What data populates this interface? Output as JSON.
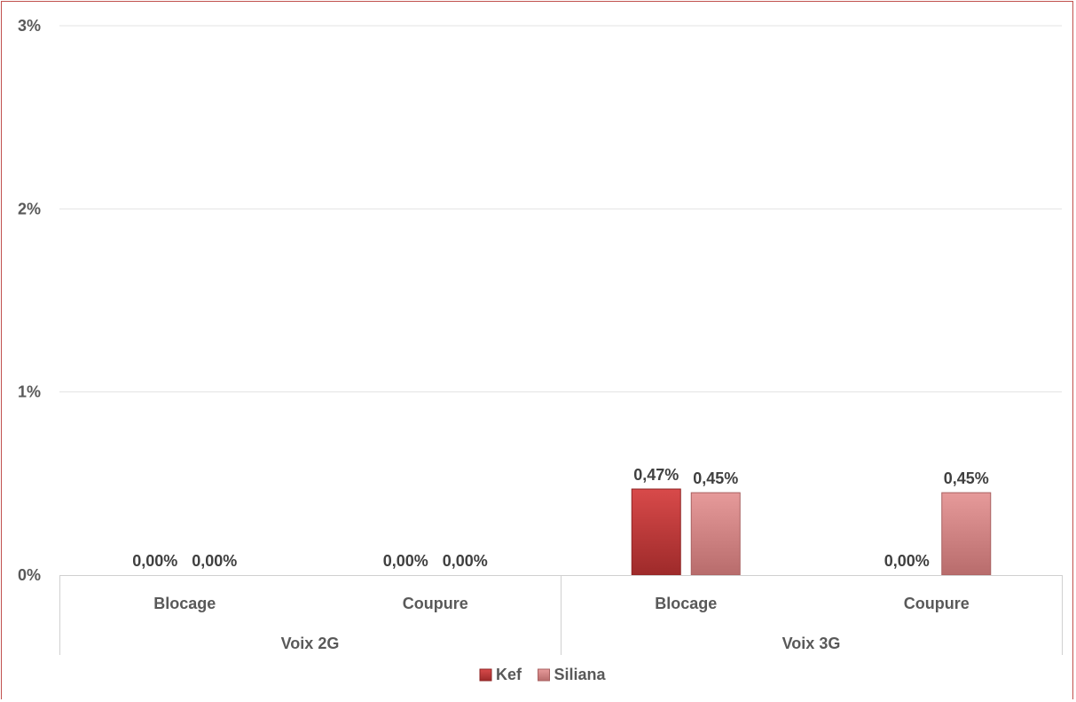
{
  "chart_data": {
    "type": "bar",
    "groups": [
      {
        "label": "Voix 2G",
        "categories": [
          "Blocage",
          "Coupure"
        ]
      },
      {
        "label": "Voix 3G",
        "categories": [
          "Blocage",
          "Coupure"
        ]
      }
    ],
    "series": [
      {
        "name": "Kef",
        "color": "#c0393b",
        "values": [
          0.0,
          0.0,
          0.47,
          0.0
        ],
        "labels": [
          "0,00%",
          "0,00%",
          "0,47%",
          "0,00%"
        ]
      },
      {
        "name": "Siliana",
        "color": "#d98585",
        "values": [
          0.0,
          0.0,
          0.45,
          0.45
        ],
        "labels": [
          "0,00%",
          "0,00%",
          "0,45%",
          "0,45%"
        ]
      }
    ],
    "yticks": [
      "0%",
      "1%",
      "2%",
      "3%"
    ],
    "ylim": [
      0,
      3
    ],
    "grid": true,
    "legend": "bottom"
  }
}
